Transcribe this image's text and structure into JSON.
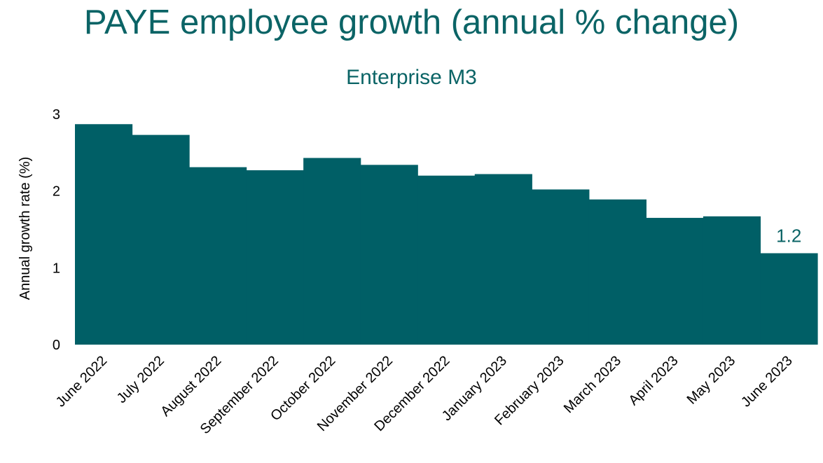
{
  "chart_data": {
    "type": "bar",
    "title": "PAYE employee growth (annual % change)",
    "subtitle": "Enterprise M3",
    "xlabel": "",
    "ylabel": "Annual growth rate (%)",
    "ylim": [
      0,
      3
    ],
    "yticks": [
      "0",
      "1",
      "2",
      "3"
    ],
    "categories": [
      "June 2022",
      "July 2022",
      "August 2022",
      "September 2022",
      "October 2022",
      "November 2022",
      "December 2022",
      "January 2023",
      "February 2023",
      "March 2023",
      "April 2023",
      "May 2023",
      "June 2023"
    ],
    "values": [
      2.87,
      2.73,
      2.31,
      2.27,
      2.43,
      2.34,
      2.2,
      2.22,
      2.02,
      1.89,
      1.65,
      1.67,
      1.19
    ],
    "data_labels": [
      {
        "index": 12,
        "text": "1.2"
      }
    ],
    "grid": false,
    "legend": "none",
    "bar_color": "#005f66",
    "text_color": "#0b6466"
  }
}
